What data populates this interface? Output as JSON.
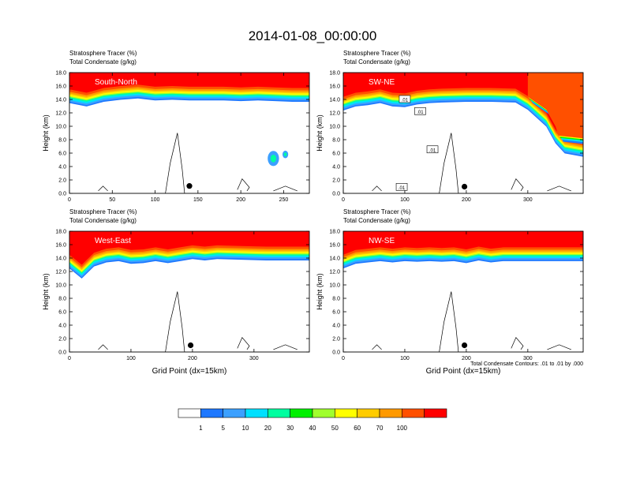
{
  "title": "2014-01-08_00:00:00",
  "panel_label_line1": "Stratosphere Tracer   (%)",
  "panel_label_line2": "Total Condensate   (g/kg)",
  "y_axis_label": "Height (km)",
  "x_axis_label": "Grid Point (dx=15km)",
  "contour_note": "Total Condensate Contours: .01 to .01 by .000",
  "colorbar": {
    "colors": [
      "#ffffff",
      "#1e78ff",
      "#3ca0ff",
      "#00e0ff",
      "#00ffa0",
      "#00f000",
      "#a0ff2d",
      "#ffff00",
      "#ffcc00",
      "#ff9900",
      "#ff5000",
      "#ff0000"
    ],
    "labels": [
      "1",
      "5",
      "10",
      "20",
      "30",
      "40",
      "50",
      "60",
      "70",
      "100"
    ]
  },
  "chart_data": [
    {
      "type": "heatmap",
      "name": "South-North",
      "ylabel": "Height (km)",
      "ylim": [
        0,
        18
      ],
      "yticks": [
        "0.0",
        "2.0",
        "4.0",
        "6.0",
        "8.0",
        "10.0",
        "12.0",
        "14.0",
        "16.0",
        "18.0"
      ],
      "xlim": [
        0,
        280
      ],
      "xticks": [
        "0",
        "50",
        "100",
        "150",
        "200",
        "250"
      ],
      "marker": {
        "x": 140,
        "y": 1.1
      },
      "contour_labels": [],
      "tracer_profile": [
        [
          0,
          15.5
        ],
        [
          20,
          15.0
        ],
        [
          40,
          15.7
        ],
        [
          60,
          16.0
        ],
        [
          80,
          16.2
        ],
        [
          100,
          15.9
        ],
        [
          120,
          16.0
        ],
        [
          140,
          15.9
        ],
        [
          160,
          15.9
        ],
        [
          180,
          15.9
        ],
        [
          200,
          15.8
        ],
        [
          220,
          15.9
        ],
        [
          240,
          15.8
        ],
        [
          260,
          15.7
        ],
        [
          280,
          15.7
        ]
      ],
      "blobs": [
        [
          238,
          5.2,
          1.2
        ],
        [
          252,
          5.8,
          0.6
        ]
      ]
    },
    {
      "type": "heatmap",
      "name": "SW-NE",
      "ylabel": "Height (km)",
      "ylim": [
        0,
        18
      ],
      "yticks": [
        "0.0",
        "2.0",
        "4.0",
        "6.0",
        "8.0",
        "10.0",
        "12.0",
        "14.0",
        "16.0",
        "18.0"
      ],
      "xlim": [
        0,
        390
      ],
      "xticks": [
        "0",
        "100",
        "200",
        "300"
      ],
      "marker": {
        "x": 197,
        "y": 1.0
      },
      "contour_labels": [
        {
          "x": 100,
          "y": 14.0,
          "text": ".01"
        },
        {
          "x": 125,
          "y": 12.2,
          "text": ".01"
        },
        {
          "x": 145,
          "y": 6.5,
          "text": ".01"
        },
        {
          "x": 95,
          "y": 0.9,
          "text": ".01"
        }
      ],
      "tracer_profile": [
        [
          0,
          14.4
        ],
        [
          20,
          15.0
        ],
        [
          40,
          15.2
        ],
        [
          60,
          15.5
        ],
        [
          80,
          15.0
        ],
        [
          100,
          14.9
        ],
        [
          120,
          15.3
        ],
        [
          140,
          15.5
        ],
        [
          160,
          15.6
        ],
        [
          200,
          15.7
        ],
        [
          240,
          15.7
        ],
        [
          280,
          15.6
        ],
        [
          300,
          14.5
        ],
        [
          330,
          12.0
        ],
        [
          345,
          9.5
        ],
        [
          360,
          8.0
        ],
        [
          390,
          7.5
        ]
      ],
      "blobs": []
    },
    {
      "type": "heatmap",
      "name": "West-East",
      "ylabel": "Height (km)",
      "ylim": [
        0,
        18
      ],
      "yticks": [
        "0.0",
        "2.0",
        "4.0",
        "6.0",
        "8.0",
        "10.0",
        "12.0",
        "14.0",
        "16.0",
        "18.0"
      ],
      "xlim": [
        0,
        390
      ],
      "xticks": [
        "0",
        "100",
        "200",
        "300"
      ],
      "xlabel": "Grid Point (dx=15km)",
      "marker": {
        "x": 197,
        "y": 1.0
      },
      "contour_labels": [],
      "tracer_profile": [
        [
          0,
          14.5
        ],
        [
          20,
          13.0
        ],
        [
          40,
          14.8
        ],
        [
          60,
          15.4
        ],
        [
          80,
          15.6
        ],
        [
          100,
          15.2
        ],
        [
          120,
          15.3
        ],
        [
          140,
          15.6
        ],
        [
          160,
          15.3
        ],
        [
          180,
          15.6
        ],
        [
          200,
          15.9
        ],
        [
          220,
          15.7
        ],
        [
          240,
          15.9
        ],
        [
          280,
          15.8
        ],
        [
          320,
          15.7
        ],
        [
          360,
          15.7
        ],
        [
          390,
          15.7
        ]
      ],
      "blobs": []
    },
    {
      "type": "heatmap",
      "name": "NW-SE",
      "ylabel": "Height (km)",
      "ylim": [
        0,
        18
      ],
      "yticks": [
        "0.0",
        "2.0",
        "4.0",
        "6.0",
        "8.0",
        "10.0",
        "12.0",
        "14.0",
        "16.0",
        "18.0"
      ],
      "xlim": [
        0,
        390
      ],
      "xticks": [
        "0",
        "100",
        "200",
        "300"
      ],
      "xlabel": "Grid Point (dx=15km)",
      "marker": {
        "x": 197,
        "y": 1.0
      },
      "contour_labels": [],
      "tracer_profile": [
        [
          0,
          14.5
        ],
        [
          20,
          15.2
        ],
        [
          40,
          15.4
        ],
        [
          60,
          15.6
        ],
        [
          80,
          15.4
        ],
        [
          100,
          15.6
        ],
        [
          120,
          15.5
        ],
        [
          140,
          15.6
        ],
        [
          160,
          15.5
        ],
        [
          180,
          15.6
        ],
        [
          200,
          15.3
        ],
        [
          220,
          15.7
        ],
        [
          240,
          15.4
        ],
        [
          260,
          15.6
        ],
        [
          280,
          15.6
        ],
        [
          320,
          15.6
        ],
        [
          360,
          15.6
        ],
        [
          390,
          15.6
        ]
      ],
      "blobs": []
    }
  ]
}
